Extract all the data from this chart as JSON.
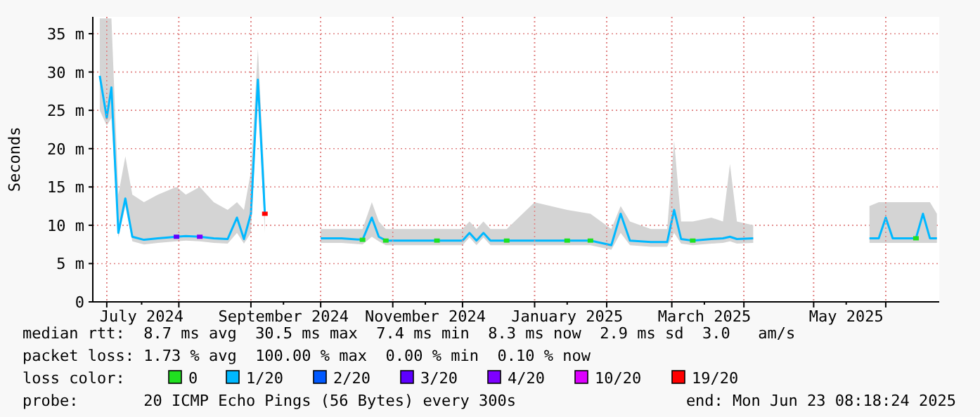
{
  "chart_data": {
    "type": "line",
    "ylabel": "Seconds",
    "legend_title": "loss color:",
    "legend": "bottom",
    "grid": true,
    "line_style": "solid",
    "xlim": [
      "2024-06-25",
      "2025-06-24"
    ],
    "xticks": [
      {
        "value": "2024-07-01",
        "label": null
      },
      {
        "value": "2024-07-16",
        "label": "July 2024"
      },
      {
        "value": "2024-08-01",
        "label": null
      },
      {
        "value": "2024-09-01",
        "label": null
      },
      {
        "value": "2024-09-15",
        "label": "September 2024"
      },
      {
        "value": "2024-10-01",
        "label": null
      },
      {
        "value": "2024-11-01",
        "label": null
      },
      {
        "value": "2024-11-15",
        "label": "November 2024"
      },
      {
        "value": "2024-12-01",
        "label": null
      },
      {
        "value": "2025-01-01",
        "label": null
      },
      {
        "value": "2025-01-15",
        "label": "January 2025"
      },
      {
        "value": "2025-02-01",
        "label": null
      },
      {
        "value": "2025-03-01",
        "label": null
      },
      {
        "value": "2025-03-15",
        "label": "March 2025"
      },
      {
        "value": "2025-04-01",
        "label": null
      },
      {
        "value": "2025-05-01",
        "label": null
      },
      {
        "value": "2025-05-15",
        "label": "May 2025"
      },
      {
        "value": "2025-06-01",
        "label": null
      }
    ],
    "ylim": [
      0,
      37.2
    ],
    "yticks": [
      0,
      {
        "value": 5,
        "label": "5 m"
      },
      {
        "value": 10,
        "label": "10 m"
      },
      {
        "value": 15,
        "label": "15 m"
      },
      {
        "value": 20,
        "label": "20 m"
      },
      {
        "value": 25,
        "label": "25 m"
      },
      {
        "value": 30,
        "label": "30 m"
      },
      {
        "value": 35,
        "label": "35 m"
      }
    ],
    "series": [
      {
        "name": "0",
        "color": "#20e020",
        "type": "scatter",
        "x": [
          "2024-10-19",
          "2024-10-29",
          "2024-11-20",
          "2024-12-20",
          "2025-01-15",
          "2025-01-25",
          "2025-03-10",
          "2025-06-14"
        ],
        "values": [
          8.1,
          8,
          8,
          8,
          8,
          8,
          8,
          8.3
        ]
      },
      {
        "name": "1/20",
        "color": "#00b8ff",
        "x": [
          "2024-06-28",
          "2024-07-01",
          "2024-07-03",
          "2024-07-06",
          "2024-07-09",
          "2024-07-12",
          "2024-07-17",
          "2024-07-23",
          "2024-07-31",
          "2024-08-04",
          "2024-08-10",
          "2024-08-16",
          "2024-08-22",
          "2024-08-26",
          "2024-08-29",
          "2024-09-01",
          "2024-09-04",
          "2024-09-07",
          "2024-09-20",
          "2024-10-01",
          "2024-10-10",
          "2024-10-19",
          "2024-10-23",
          "2024-10-26",
          "2024-10-29",
          "2024-11-10",
          "2024-11-20",
          "2024-12-01",
          "2024-12-04",
          "2024-12-07",
          "2024-12-10",
          "2024-12-13",
          "2024-12-20",
          "2025-01-01",
          "2025-01-15",
          "2025-01-25",
          "2025-02-03",
          "2025-02-07",
          "2025-02-11",
          "2025-02-20",
          "2025-02-27",
          "2025-03-02",
          "2025-03-05",
          "2025-03-10",
          "2025-03-18",
          "2025-03-23",
          "2025-03-26",
          "2025-03-29",
          "2025-04-05",
          "2025-04-20",
          "2025-05-25",
          "2025-05-29",
          "2025-06-01",
          "2025-06-04",
          "2025-06-10",
          "2025-06-14",
          "2025-06-17",
          "2025-06-20",
          "2025-06-23"
        ],
        "values": [
          29.5,
          24,
          28,
          9,
          13.5,
          8.5,
          8.1,
          8.3,
          8.5,
          8.6,
          8.5,
          8.3,
          8.2,
          11,
          8.2,
          11.5,
          29,
          11.5,
          null,
          8.3,
          8.3,
          8.1,
          11,
          8.5,
          8,
          8,
          8,
          8,
          9,
          8,
          9,
          8,
          8,
          8,
          8,
          8,
          7.4,
          11.5,
          8,
          7.8,
          7.8,
          12,
          8.2,
          8,
          8.2,
          8.3,
          8.5,
          8.2,
          8.3,
          null,
          8.3,
          8.3,
          11,
          8.3,
          8.3,
          8.3,
          11.5,
          8.3,
          8.3
        ],
        "lower": [
          25,
          23,
          24,
          8.4,
          12.5,
          7.9,
          7.5,
          7.7,
          7.9,
          8,
          7.9,
          7.7,
          7.6,
          9,
          7.6,
          9,
          27,
          9,
          null,
          7.7,
          7.7,
          7.5,
          8.5,
          7.9,
          7.4,
          7.4,
          7.4,
          7.4,
          8.4,
          7.4,
          8.4,
          7.4,
          7.4,
          7.4,
          7.4,
          7.4,
          6.8,
          9,
          7.4,
          7.2,
          7.2,
          9,
          7.6,
          7.4,
          7.6,
          7.7,
          7.9,
          7.6,
          7.7,
          null,
          7.7,
          7.7,
          7.7,
          7.7,
          7.7,
          7.7,
          7.7,
          7.7,
          7.7
        ],
        "upper": [
          37,
          37,
          37,
          14,
          19,
          14,
          13,
          14,
          15,
          14,
          15,
          13,
          12,
          13,
          12,
          17,
          33,
          15,
          null,
          9.5,
          9.5,
          9.5,
          13,
          10.5,
          9.5,
          9.5,
          9.5,
          9.5,
          10.5,
          9.5,
          10.5,
          9.5,
          9.5,
          13,
          12,
          11.5,
          9.5,
          12.5,
          10.5,
          9.5,
          9.5,
          21,
          10.5,
          10.5,
          11,
          10.5,
          18,
          10.5,
          10,
          null,
          12.5,
          13,
          13,
          13,
          13,
          13,
          13,
          13,
          11.5
        ]
      },
      {
        "name": "2/20",
        "color": "#0059ff",
        "type": "scatter"
      },
      {
        "name": "3/20",
        "color": "#5e00ff",
        "type": "scatter",
        "x": [
          "2024-07-31"
        ],
        "values": [
          8.5
        ]
      },
      {
        "name": "4/20",
        "color": "#7e00ff",
        "type": "scatter",
        "x": [
          "2024-08-10"
        ],
        "values": [
          8.5
        ]
      },
      {
        "name": "10/20",
        "color": "#dd00ff",
        "type": "scatter"
      },
      {
        "name": "19/20",
        "color": "#ff0000",
        "type": "scatter",
        "x": [
          "2024-09-07"
        ],
        "values": [
          11.5
        ]
      }
    ],
    "annotations": [
      "median rtt:  8.7 ms avg  30.5 ms max  7.4 ms min  8.3 ms now  2.9 ms sd  3.0   am/s",
      "packet loss: 1.73 % avg  100.00 % max  0.00 % min  0.10 % now",
      "probe:       20 ICMP Echo Pings (56 Bytes) every 300s",
      "end: Mon Jun 23 08:18:24 2025"
    ]
  }
}
